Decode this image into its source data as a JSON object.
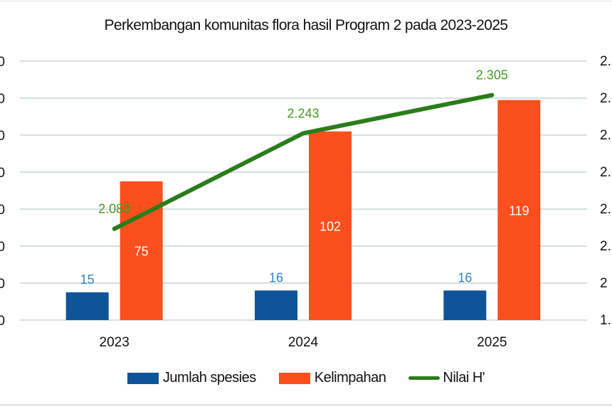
{
  "chart_data": {
    "type": "bar",
    "title": "Perkembangan komunitas flora hasil Program 2 pada 2023-2025",
    "categories": [
      "2023",
      "2024",
      "2025"
    ],
    "series": [
      {
        "name": "Jumlah spesies",
        "kind": "bar",
        "axis": "left",
        "color": "#0f5499",
        "label_color": "#2e86c8",
        "values": [
          15,
          16,
          16
        ]
      },
      {
        "name": "Kelimpahan",
        "kind": "bar",
        "axis": "left",
        "color": "#fc4f1e",
        "label_color": "#ffffff",
        "values": [
          75,
          102,
          119
        ]
      },
      {
        "name": "Nilai H'",
        "kind": "line",
        "axis": "right",
        "color": "#2a7d1a",
        "label_color": "#3f9a1e",
        "values": [
          2.088,
          2.243,
          2.305
        ]
      }
    ],
    "data_labels": {
      "Jumlah spesies": [
        "15",
        "16",
        "16"
      ],
      "Kelimpahan": [
        "75",
        "102",
        "119"
      ],
      "Nilai H'": [
        "2.088",
        "2.243",
        "2.305"
      ]
    },
    "left_axis": {
      "ylim": [
        0,
        140
      ],
      "step": 20,
      "tick_labels_visible": [
        "0",
        "0",
        "0",
        "0",
        "0",
        "0",
        "0",
        "0"
      ],
      "note": "labels clipped at left edge, only last digit visible"
    },
    "right_axis": {
      "ylim": [
        1.94,
        2.36
      ],
      "step": 0.06,
      "tick_labels_visible": [
        "1.",
        "2",
        "2.",
        "2.",
        "2.",
        "2.",
        "2.",
        "2."
      ],
      "note": "labels clipped at right edge"
    },
    "grid": true,
    "legend_position": "bottom",
    "xlabel": "",
    "ylabel": ""
  },
  "legend": {
    "items": [
      {
        "label": "Jumlah spesies",
        "type": "bar",
        "color": "#0f5499"
      },
      {
        "label": "Kelimpahan",
        "type": "bar",
        "color": "#fc4f1e"
      },
      {
        "label": "Nilai H'",
        "type": "line",
        "color": "#2a7d1a"
      }
    ]
  }
}
